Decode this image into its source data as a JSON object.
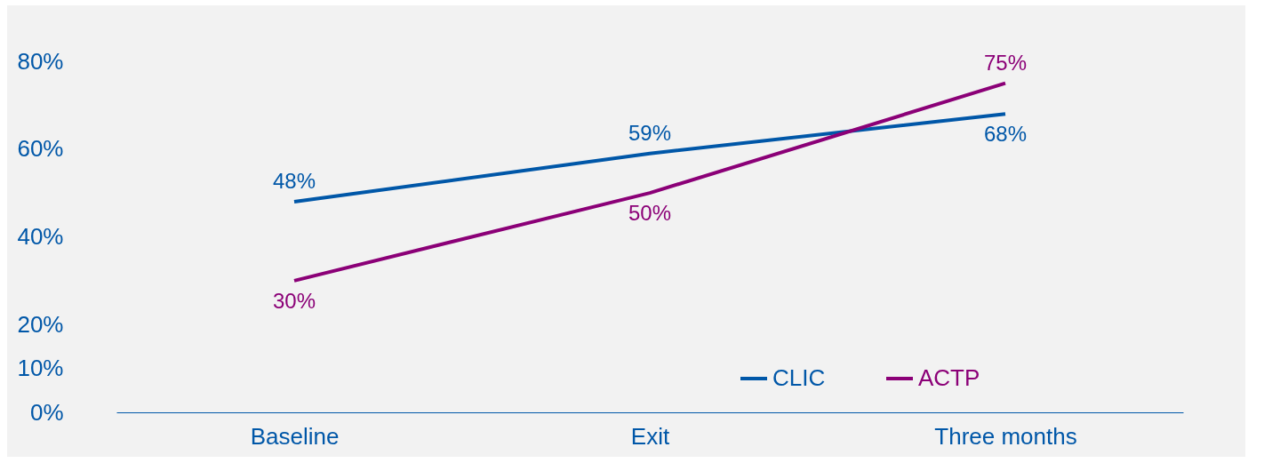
{
  "chart_data": {
    "type": "line",
    "categories": [
      "Baseline",
      "Exit",
      "Three months"
    ],
    "series": [
      {
        "name": "CLIC",
        "color": "#0057a8",
        "values": [
          48,
          59,
          68
        ],
        "value_labels": [
          "48%",
          "59%",
          "68%"
        ]
      },
      {
        "name": "ACTP",
        "color": "#8b0077",
        "values": [
          30,
          50,
          75
        ],
        "value_labels": [
          "30%",
          "50%",
          "75%"
        ]
      }
    ],
    "ylim": [
      0,
      80
    ],
    "yticks": [
      {
        "value": 0,
        "label": "0%"
      },
      {
        "value": 10,
        "label": "10%"
      },
      {
        "value": 20,
        "label": "20%"
      },
      {
        "value": 40,
        "label": "40%"
      },
      {
        "value": 60,
        "label": "60%"
      },
      {
        "value": 80,
        "label": "80%"
      }
    ],
    "grid": false,
    "legend": "bottom right",
    "marker": "none",
    "line_style": "solid"
  }
}
